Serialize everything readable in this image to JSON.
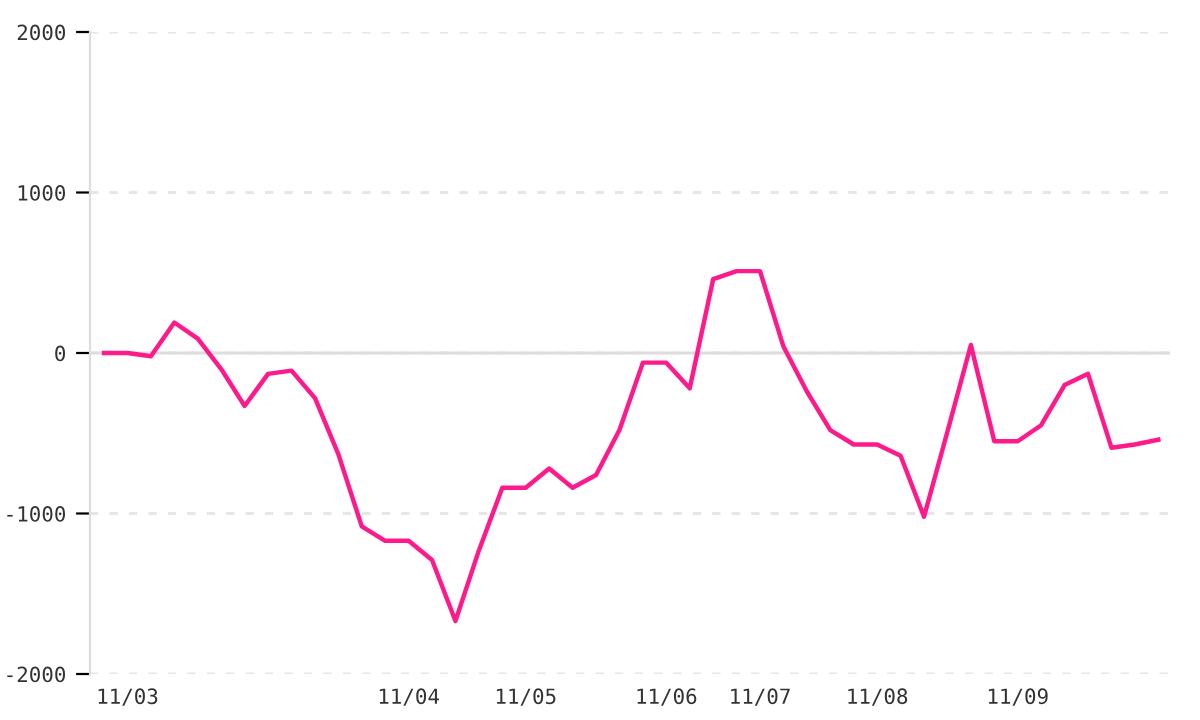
{
  "chart_data": {
    "type": "line",
    "categories": [
      null,
      "11/03",
      null,
      null,
      null,
      null,
      null,
      null,
      null,
      null,
      null,
      null,
      null,
      "11/04",
      null,
      null,
      null,
      null,
      "11/05",
      null,
      null,
      null,
      null,
      null,
      "11/06",
      null,
      null,
      null,
      "11/07",
      null,
      null,
      null,
      null,
      "11/08",
      null,
      null,
      null,
      null,
      null,
      "11/09",
      null,
      null,
      null,
      null,
      null,
      null
    ],
    "series": [
      {
        "color": "#ff1a8c",
        "values": [
          0,
          0,
          -20,
          190,
          90,
          -100,
          -330,
          -130,
          -110,
          -280,
          -630,
          -1080,
          -1170,
          -1170,
          -1290,
          -1670,
          -1230,
          -840,
          -840,
          -720,
          -840,
          -760,
          -480,
          -60,
          -60,
          -220,
          460,
          510,
          510,
          40,
          -240,
          -480,
          -570,
          -570,
          -640,
          -1020,
          -490,
          50,
          -550,
          -550,
          -450,
          -200,
          -130,
          -590,
          -570,
          -540
        ]
      }
    ],
    "ylim": [
      -2000,
      2000
    ],
    "yticks": [
      -2000,
      -1000,
      0,
      1000,
      2000
    ],
    "grid": "y",
    "marker": "none",
    "line_style": "solid",
    "ref_lines": [
      {
        "axis": "y",
        "value": 0,
        "color": "#dddddd",
        "line_style": "solid"
      }
    ]
  }
}
